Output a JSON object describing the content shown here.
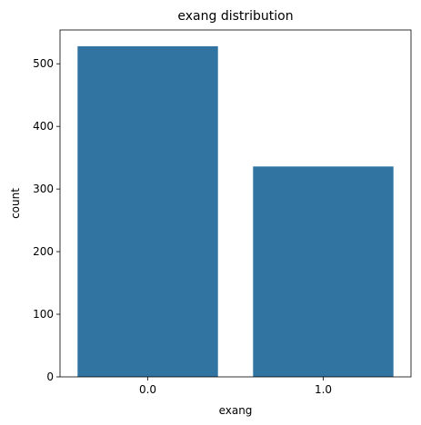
{
  "chart_data": {
    "type": "bar",
    "title": "exang distribution",
    "xlabel": "exang",
    "ylabel": "count",
    "categories": [
      "0.0",
      "1.0"
    ],
    "values": [
      528,
      336
    ],
    "ylim": [
      0,
      554
    ],
    "yticks": [
      0,
      100,
      200,
      300,
      400,
      500
    ],
    "bar_color": "#3274a1",
    "grid": false,
    "legend": "none"
  }
}
